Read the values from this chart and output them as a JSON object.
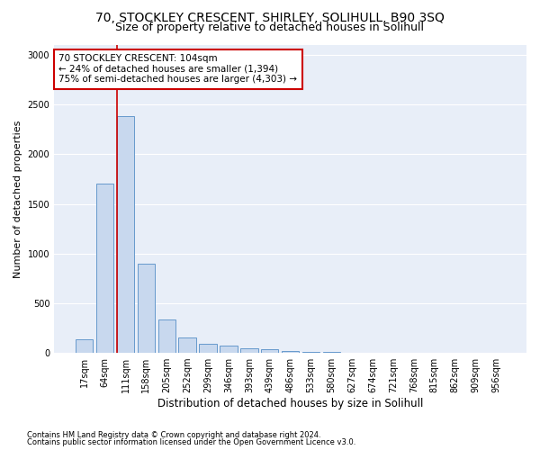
{
  "title1": "70, STOCKLEY CRESCENT, SHIRLEY, SOLIHULL, B90 3SQ",
  "title2": "Size of property relative to detached houses in Solihull",
  "xlabel": "Distribution of detached houses by size in Solihull",
  "ylabel": "Number of detached properties",
  "categories": [
    "17sqm",
    "64sqm",
    "111sqm",
    "158sqm",
    "205sqm",
    "252sqm",
    "299sqm",
    "346sqm",
    "393sqm",
    "439sqm",
    "486sqm",
    "533sqm",
    "580sqm",
    "627sqm",
    "674sqm",
    "721sqm",
    "768sqm",
    "815sqm",
    "862sqm",
    "909sqm",
    "956sqm"
  ],
  "values": [
    140,
    1700,
    2380,
    900,
    340,
    155,
    90,
    70,
    45,
    35,
    15,
    10,
    8,
    3,
    2,
    1,
    1,
    0,
    0,
    0,
    0
  ],
  "bar_color": "#c8d8ee",
  "bar_edge_color": "#6699cc",
  "highlight_line_color": "#cc0000",
  "annotation_text": "70 STOCKLEY CRESCENT: 104sqm\n← 24% of detached houses are smaller (1,394)\n75% of semi-detached houses are larger (4,303) →",
  "annotation_box_color": "#ffffff",
  "annotation_box_edge_color": "#cc0000",
  "ylim": [
    0,
    3100
  ],
  "yticks": [
    0,
    500,
    1000,
    1500,
    2000,
    2500,
    3000
  ],
  "footnote1": "Contains HM Land Registry data © Crown copyright and database right 2024.",
  "footnote2": "Contains public sector information licensed under the Open Government Licence v3.0.",
  "fig_bg_color": "#ffffff",
  "plot_bg_color": "#e8eef8",
  "grid_color": "#ffffff",
  "title1_fontsize": 10,
  "title2_fontsize": 9,
  "tick_fontsize": 7,
  "ylabel_fontsize": 8,
  "xlabel_fontsize": 8.5,
  "footnote_fontsize": 6,
  "annot_fontsize": 7.5
}
